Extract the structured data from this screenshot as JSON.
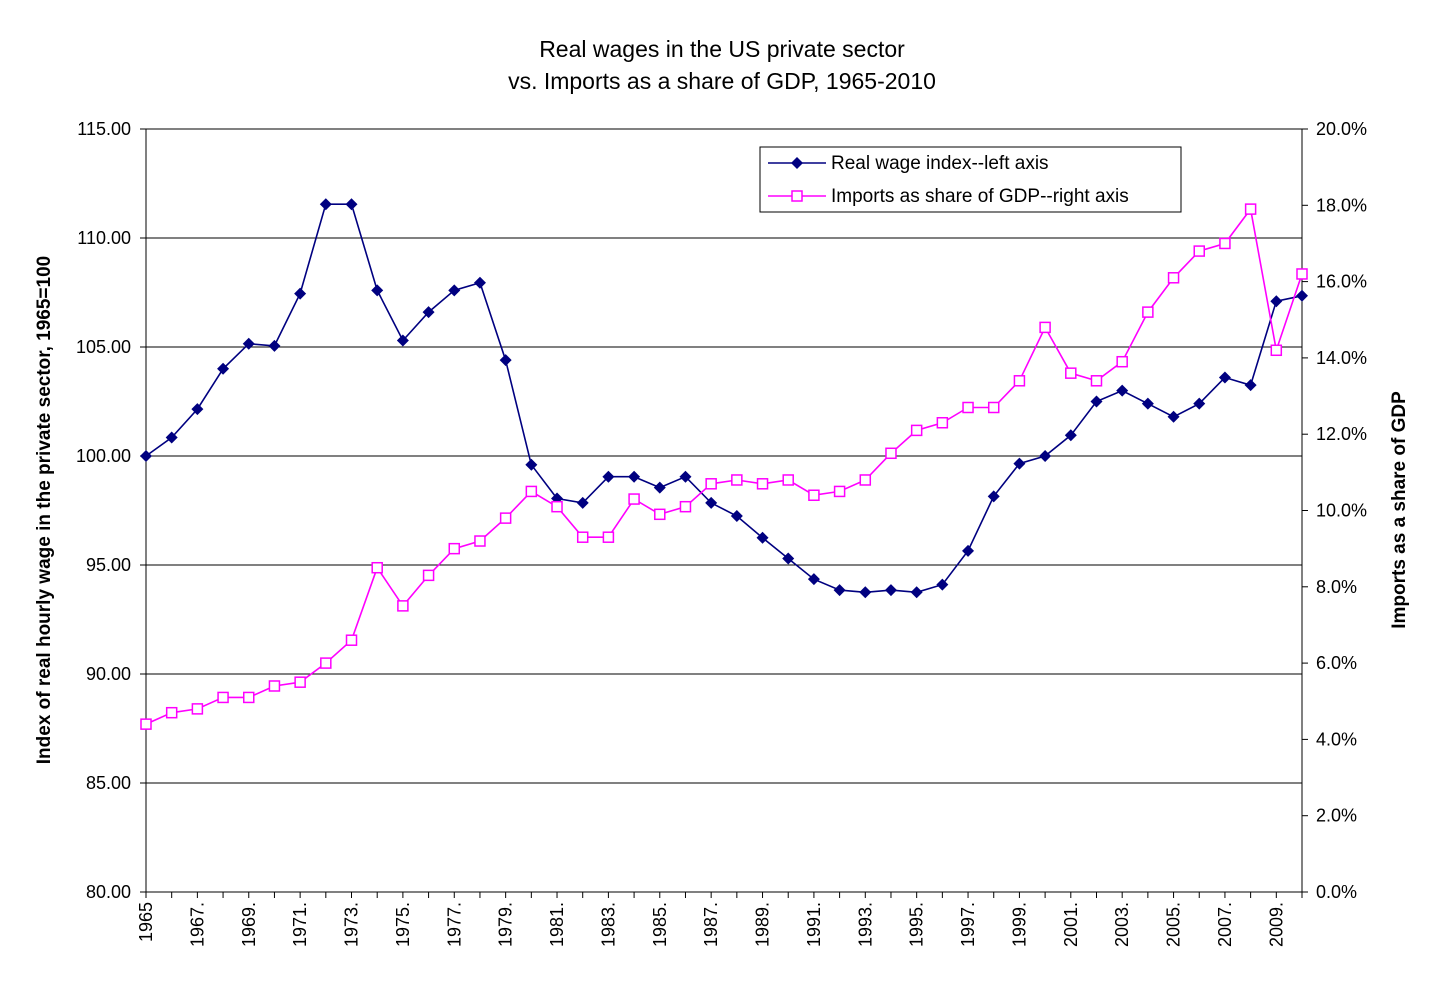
{
  "chart_data": {
    "type": "line",
    "title": "Real wages in the US private sector",
    "subtitle": "vs. Imports as a share of GDP, 1965-2010",
    "ylabel": "Index of real hourly wage in the private sector, 1965=100",
    "ylabel_right": "Imports as a share of GDP",
    "ylim": [
      80,
      115
    ],
    "ylim_right": [
      0,
      0.2
    ],
    "y_ticks": [
      "80.00",
      "85.00",
      "90.00",
      "95.00",
      "100.00",
      "105.00",
      "110.00",
      "115.00"
    ],
    "y_ticks_right": [
      "0.0%",
      "2.0%",
      "4.0%",
      "6.0%",
      "8.0%",
      "10.0%",
      "12.0%",
      "14.0%",
      "16.0%",
      "18.0%",
      "20.0%"
    ],
    "x_tick_labels": [
      "1965",
      "1967.",
      "1969.",
      "1971.",
      "1973.",
      "1975.",
      "1977.",
      "1979.",
      "1981.",
      "1983.",
      "1985.",
      "1987.",
      "1989.",
      "1991.",
      "1993.",
      "1995.",
      "1997.",
      "1999.",
      "2001.",
      "2003.",
      "2005.",
      "2007.",
      "2009."
    ],
    "x": [
      1965,
      1966,
      1967,
      1968,
      1969,
      1970,
      1971,
      1972,
      1973,
      1974,
      1975,
      1976,
      1977,
      1978,
      1979,
      1980,
      1981,
      1982,
      1983,
      1984,
      1985,
      1986,
      1987,
      1988,
      1989,
      1990,
      1991,
      1992,
      1993,
      1994,
      1995,
      1996,
      1997,
      1998,
      1999,
      2000,
      2001,
      2002,
      2003,
      2004,
      2005,
      2006,
      2007,
      2008,
      2009,
      2010
    ],
    "grid": true,
    "legend_position": "top-right",
    "series": [
      {
        "name": "Real wage index--left axis",
        "axis": "left",
        "color": "#000080",
        "marker": "diamond",
        "values": [
          100.0,
          100.85,
          102.15,
          104.0,
          105.15,
          105.05,
          107.45,
          111.55,
          111.55,
          107.6,
          105.3,
          106.6,
          107.6,
          107.95,
          104.4,
          99.6,
          98.05,
          97.85,
          99.05,
          99.05,
          98.55,
          99.05,
          97.85,
          97.25,
          96.25,
          95.3,
          94.35,
          93.85,
          93.75,
          93.85,
          93.75,
          94.1,
          95.65,
          98.15,
          99.65,
          100.0,
          100.95,
          102.5,
          103.0,
          102.4,
          101.8,
          102.4,
          103.6,
          103.25,
          107.1,
          107.35
        ]
      },
      {
        "name": "Imports as share of GDP--right axis",
        "axis": "right",
        "color": "#ff00ff",
        "marker": "open-square",
        "values": [
          0.044,
          0.047,
          0.048,
          0.051,
          0.051,
          0.054,
          0.055,
          0.06,
          0.066,
          0.085,
          0.075,
          0.083,
          0.09,
          0.092,
          0.098,
          0.105,
          0.101,
          0.093,
          0.093,
          0.103,
          0.099,
          0.101,
          0.107,
          0.108,
          0.107,
          0.108,
          0.104,
          0.105,
          0.108,
          0.115,
          0.121,
          0.123,
          0.127,
          0.127,
          0.134,
          0.148,
          0.136,
          0.134,
          0.139,
          0.152,
          0.161,
          0.168,
          0.17,
          0.179,
          0.142,
          0.162
        ]
      }
    ]
  }
}
